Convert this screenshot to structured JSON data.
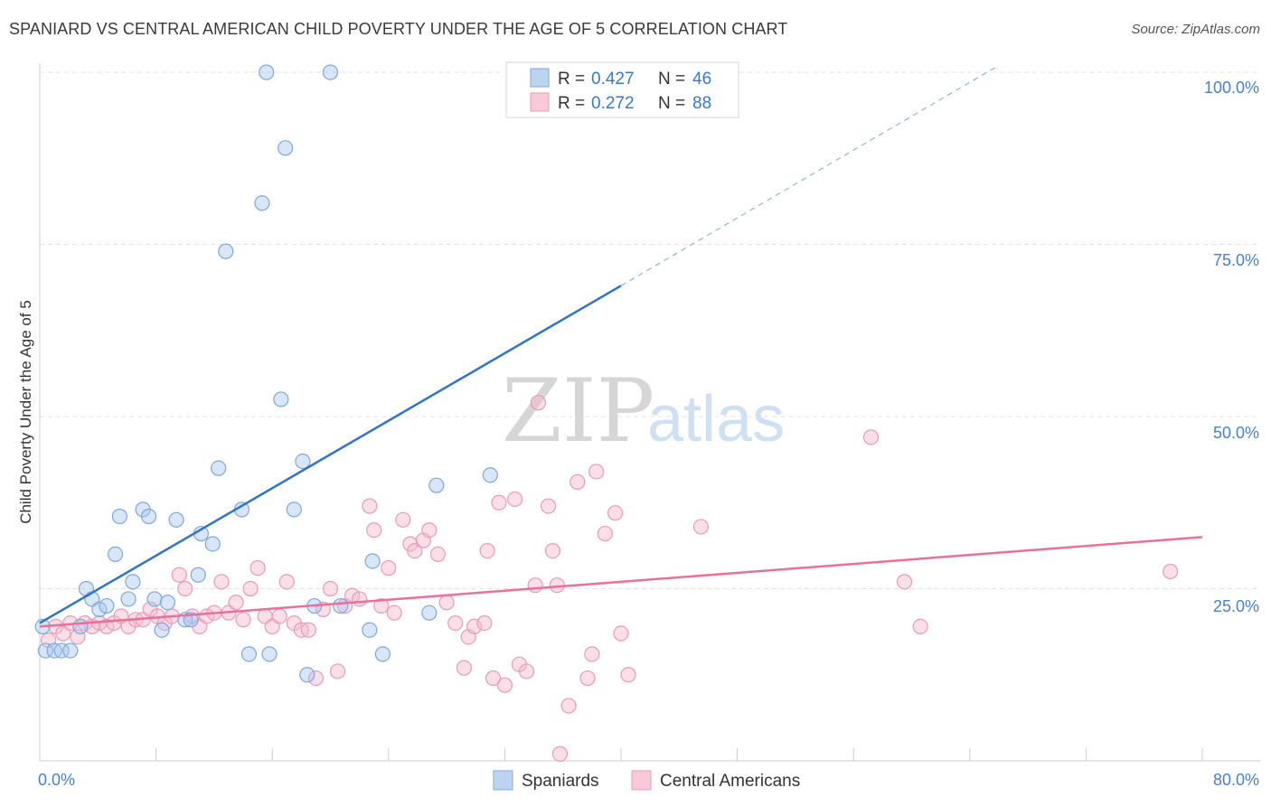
{
  "title": "SPANIARD VS CENTRAL AMERICAN CHILD POVERTY UNDER THE AGE OF 5 CORRELATION CHART",
  "source": "Source: ZipAtlas.com",
  "watermark": {
    "zip": "ZIP",
    "atlas": "atlas"
  },
  "legend": {
    "rows": [
      {
        "r_label": "R = ",
        "r_value": "0.427",
        "n_label": "N = ",
        "n_value": "46"
      },
      {
        "r_label": "R = ",
        "r_value": "0.272",
        "n_label": "N = ",
        "n_value": "88"
      }
    ]
  },
  "bottom_legend": {
    "spaniards": "Spaniards",
    "central_americans": "Central Americans"
  },
  "chart_data": {
    "type": "scatter",
    "title": "SPANIARD VS CENTRAL AMERICAN CHILD POVERTY UNDER THE AGE OF 5 CORRELATION CHART",
    "xlabel": "",
    "ylabel": "Child Poverty Under the Age of 5",
    "xlim": [
      0,
      80
    ],
    "ylim": [
      0,
      100
    ],
    "x_tick_labels": [
      "0.0%",
      "80.0%"
    ],
    "y_tick_labels": [
      "25.0%",
      "50.0%",
      "75.0%",
      "100.0%"
    ],
    "y_ticks": [
      25,
      50,
      75,
      100
    ],
    "grid": true,
    "legend_position": "top-center",
    "colors": {
      "spaniards": "#a9c8ef",
      "spaniards_line": "#2f74c8",
      "central": "#f5b8cb",
      "central_line": "#e8709a",
      "axis_text": "#4a7fc9"
    },
    "series": [
      {
        "name": "Spaniards",
        "r": 0.427,
        "n": 46,
        "trend": {
          "x": [
            0,
            40,
            66
          ],
          "y": [
            20,
            69,
            101
          ],
          "dashed_from_x": 40
        },
        "points": [
          [
            0.2,
            19.5
          ],
          [
            0.4,
            16
          ],
          [
            1,
            16
          ],
          [
            1.5,
            16
          ],
          [
            2.1,
            16
          ],
          [
            2.8,
            19.5
          ],
          [
            3.2,
            25
          ],
          [
            3.6,
            23.5
          ],
          [
            4.1,
            22
          ],
          [
            4.6,
            22.5
          ],
          [
            5.2,
            30
          ],
          [
            5.5,
            35.5
          ],
          [
            6.1,
            23.5
          ],
          [
            6.4,
            26
          ],
          [
            7.1,
            36.5
          ],
          [
            7.5,
            35.5
          ],
          [
            7.9,
            23.5
          ],
          [
            8.4,
            19
          ],
          [
            8.8,
            23
          ],
          [
            9.4,
            35
          ],
          [
            10,
            20.5
          ],
          [
            10.4,
            20.5
          ],
          [
            10.9,
            27
          ],
          [
            11.1,
            33
          ],
          [
            11.9,
            31.5
          ],
          [
            12.3,
            42.5
          ],
          [
            12.8,
            74
          ],
          [
            13.9,
            36.5
          ],
          [
            14.4,
            15.5
          ],
          [
            15.3,
            81
          ],
          [
            15.6,
            100
          ],
          [
            15.8,
            15.5
          ],
          [
            16.6,
            52.5
          ],
          [
            16.9,
            89
          ],
          [
            17.5,
            36.5
          ],
          [
            18.1,
            43.5
          ],
          [
            18.4,
            12.5
          ],
          [
            18.9,
            22.5
          ],
          [
            20,
            100
          ],
          [
            20.7,
            22.5
          ],
          [
            22.7,
            19
          ],
          [
            22.9,
            29
          ],
          [
            23.6,
            15.5
          ],
          [
            26.8,
            21.5
          ],
          [
            31,
            41.5
          ],
          [
            27.3,
            40
          ]
        ]
      },
      {
        "name": "Central Americans",
        "r": 0.272,
        "n": 88,
        "trend": {
          "x": [
            0,
            80
          ],
          "y": [
            19.5,
            32.5
          ]
        },
        "points": [
          [
            0.6,
            17.5
          ],
          [
            1.1,
            19.5
          ],
          [
            1.6,
            18.5
          ],
          [
            2.1,
            20
          ],
          [
            2.6,
            18
          ],
          [
            3.1,
            20
          ],
          [
            3.6,
            19.5
          ],
          [
            4.1,
            20
          ],
          [
            4.6,
            19.5
          ],
          [
            5.1,
            20
          ],
          [
            5.6,
            21
          ],
          [
            6.1,
            19.5
          ],
          [
            6.6,
            20.5
          ],
          [
            7.1,
            20.5
          ],
          [
            7.6,
            22
          ],
          [
            8.1,
            21
          ],
          [
            8.6,
            20
          ],
          [
            9.1,
            21
          ],
          [
            9.6,
            27
          ],
          [
            10,
            25
          ],
          [
            10.5,
            21
          ],
          [
            11,
            19.5
          ],
          [
            11.5,
            21
          ],
          [
            12,
            21.5
          ],
          [
            12.5,
            26
          ],
          [
            13,
            21.5
          ],
          [
            13.5,
            23
          ],
          [
            14,
            20.5
          ],
          [
            14.5,
            25
          ],
          [
            15,
            28
          ],
          [
            15.5,
            21
          ],
          [
            16,
            19.5
          ],
          [
            16.5,
            21
          ],
          [
            17,
            26
          ],
          [
            17.5,
            20
          ],
          [
            18,
            19
          ],
          [
            18.5,
            19
          ],
          [
            19,
            12
          ],
          [
            19.5,
            22
          ],
          [
            20,
            25
          ],
          [
            20.5,
            13
          ],
          [
            21,
            22.5
          ],
          [
            21.5,
            24
          ],
          [
            22,
            23.5
          ],
          [
            22.7,
            37
          ],
          [
            23,
            33.5
          ],
          [
            23.5,
            22.5
          ],
          [
            24,
            28
          ],
          [
            24.4,
            21.5
          ],
          [
            25,
            35
          ],
          [
            25.5,
            31.5
          ],
          [
            25.8,
            30.5
          ],
          [
            26.4,
            32
          ],
          [
            26.8,
            33.5
          ],
          [
            27.4,
            30
          ],
          [
            28,
            23
          ],
          [
            28.6,
            20
          ],
          [
            29.2,
            13.5
          ],
          [
            29.5,
            18
          ],
          [
            29.9,
            19.5
          ],
          [
            30.6,
            20
          ],
          [
            30.8,
            30.5
          ],
          [
            31.2,
            12
          ],
          [
            31.6,
            37.5
          ],
          [
            32,
            11
          ],
          [
            32.7,
            38
          ],
          [
            33,
            14
          ],
          [
            33.5,
            13
          ],
          [
            34.1,
            25.5
          ],
          [
            34.3,
            52
          ],
          [
            35,
            37
          ],
          [
            35.3,
            30.5
          ],
          [
            35.6,
            25.5
          ],
          [
            36.4,
            8
          ],
          [
            37,
            40.5
          ],
          [
            37.7,
            12
          ],
          [
            38,
            15.5
          ],
          [
            38.3,
            42
          ],
          [
            38.9,
            33
          ],
          [
            39.6,
            36
          ],
          [
            40,
            18.5
          ],
          [
            40.5,
            12.5
          ],
          [
            35.8,
            1
          ],
          [
            45.5,
            34
          ],
          [
            59.5,
            26
          ],
          [
            60.6,
            19.5
          ],
          [
            57.2,
            47
          ],
          [
            77.8,
            27.5
          ]
        ]
      }
    ]
  }
}
